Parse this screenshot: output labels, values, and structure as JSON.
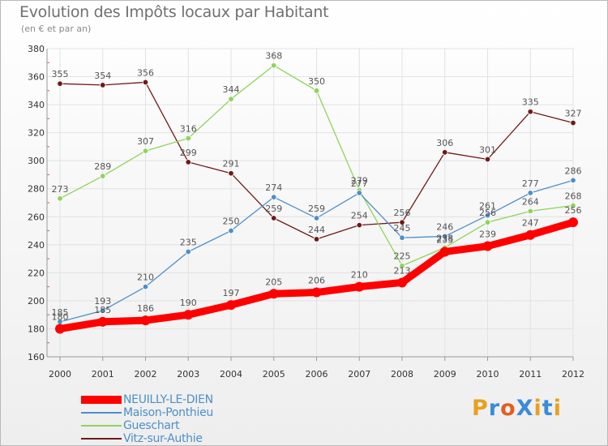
{
  "title": "Evolution des Impôts locaux par Habitant",
  "subtitle": "(en € et par an)",
  "logo": "ProXiti",
  "chart_data": {
    "type": "line",
    "x": [
      "2000",
      "2001",
      "2002",
      "2003",
      "2004",
      "2005",
      "2006",
      "2007",
      "2008",
      "2009",
      "2010",
      "2011",
      "2012"
    ],
    "ylim": [
      160,
      380
    ],
    "yticks": [
      160,
      180,
      200,
      220,
      240,
      260,
      280,
      300,
      320,
      340,
      360,
      380
    ],
    "grid": true,
    "legend": "bottom-left",
    "series": [
      {
        "name": "NEUILLY-LE-DIEN",
        "color": "#ff0000",
        "values": [
          180,
          185,
          186,
          190,
          197,
          205,
          206,
          210,
          213,
          235,
          239,
          247,
          256
        ]
      },
      {
        "name": "Maison-Ponthieu",
        "color": "#4d8fc8",
        "values": [
          185,
          193,
          210,
          235,
          250,
          274,
          259,
          277,
          245,
          246,
          261,
          277,
          286
        ]
      },
      {
        "name": "Gueschart",
        "color": "#8fd45a",
        "values": [
          273,
          289,
          307,
          316,
          344,
          368,
          350,
          279,
          225,
          238,
          256,
          264,
          268
        ]
      },
      {
        "name": "Vitz-sur-Authie",
        "color": "#6e1a1a",
        "values": [
          355,
          354,
          356,
          299,
          291,
          259,
          244,
          254,
          256,
          306,
          301,
          335,
          327
        ]
      }
    ]
  }
}
